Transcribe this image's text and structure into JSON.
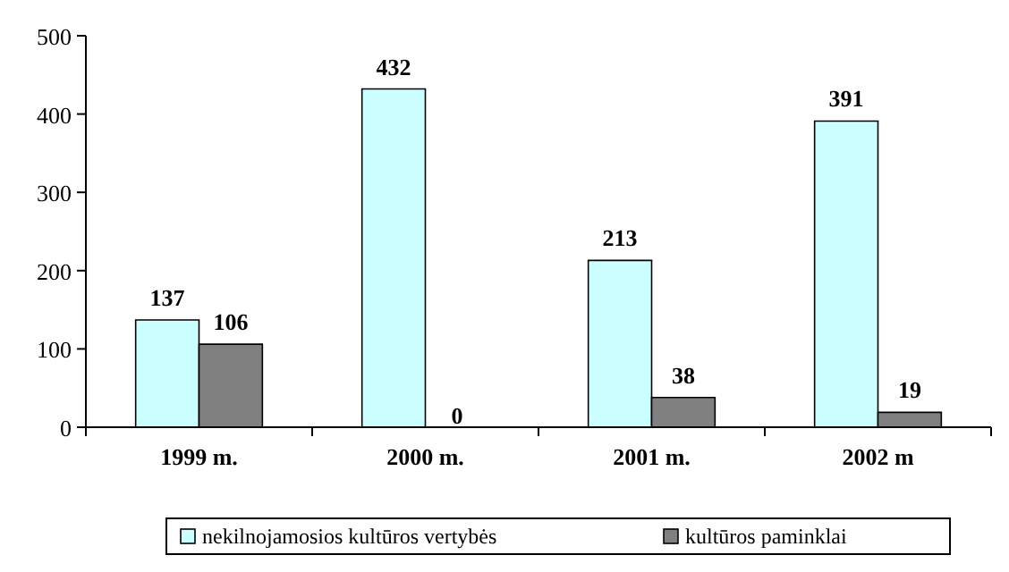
{
  "chart_data": {
    "type": "bar",
    "categories": [
      "1999 m.",
      "2000 m.",
      "2001 m.",
      "2002 m"
    ],
    "series": [
      {
        "name": "nekilnojamosios kultūros vertybės",
        "color": "#ccffff",
        "values": [
          137,
          432,
          213,
          391
        ]
      },
      {
        "name": "kultūros paminklai",
        "color": "#808080",
        "values": [
          106,
          0,
          38,
          19
        ]
      }
    ],
    "ylim": [
      0,
      500
    ],
    "yticks": [
      0,
      100,
      200,
      300,
      400,
      500
    ],
    "grid": false,
    "legend": "bottom",
    "data_labels": true
  }
}
